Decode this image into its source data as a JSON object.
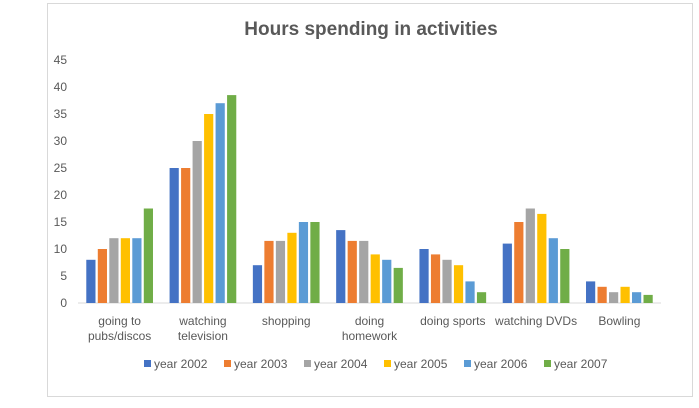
{
  "chart_data": {
    "type": "bar",
    "title": "Hours spending in activities",
    "xlabel": "",
    "ylabel": "",
    "ylim": [
      0,
      45
    ],
    "yticks": [
      0,
      5,
      10,
      15,
      20,
      25,
      30,
      35,
      40,
      45
    ],
    "grid": false,
    "legend_position": "bottom",
    "categories": [
      [
        "going to",
        "pubs/discos"
      ],
      [
        "watching",
        "television"
      ],
      [
        "shopping"
      ],
      [
        "doing",
        "homework"
      ],
      [
        "doing sports"
      ],
      [
        "watching DVDs"
      ],
      [
        "Bowling"
      ]
    ],
    "series": [
      {
        "name": "year 2002",
        "color": "#4472c4",
        "values": [
          8,
          25,
          7,
          13.5,
          10,
          11,
          4
        ]
      },
      {
        "name": "year 2003",
        "color": "#ed7d31",
        "values": [
          10,
          25,
          11.5,
          11.5,
          9,
          15,
          3
        ]
      },
      {
        "name": "year 2004",
        "color": "#a5a5a5",
        "values": [
          12,
          30,
          11.5,
          11.5,
          8,
          17.5,
          2
        ]
      },
      {
        "name": "year 2005",
        "color": "#ffc000",
        "values": [
          12,
          35,
          13,
          9,
          7,
          16.5,
          3
        ]
      },
      {
        "name": "year 2006",
        "color": "#5b9bd5",
        "values": [
          12,
          37,
          15,
          8,
          4,
          12,
          2
        ]
      },
      {
        "name": "year 2007",
        "color": "#70ad47",
        "values": [
          17.5,
          38.5,
          15,
          6.5,
          2,
          10,
          1.5
        ]
      }
    ]
  }
}
